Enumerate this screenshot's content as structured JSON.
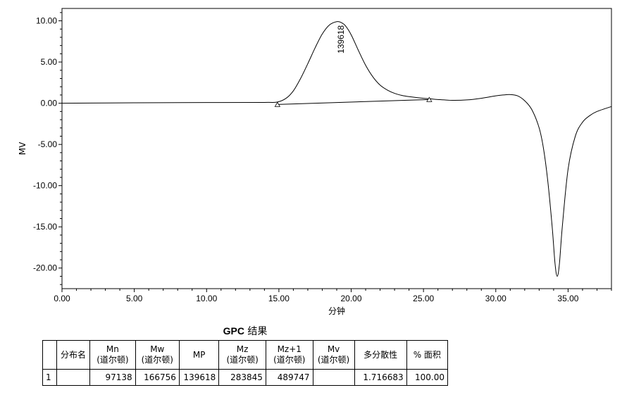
{
  "chart_data": {
    "type": "line",
    "xlabel": "分钟",
    "ylabel": "MV",
    "xlim": [
      0,
      38
    ],
    "ylim": [
      -22.5,
      11.5
    ],
    "x_ticks": [
      "0.00",
      "5.00",
      "10.00",
      "15.00",
      "20.00",
      "25.00",
      "30.00",
      "35.00"
    ],
    "x_tick_values": [
      0,
      5,
      10,
      15,
      20,
      25,
      30,
      35
    ],
    "y_ticks": [
      "10.00",
      "5.00",
      "0.00",
      "-5.00",
      "-10.00",
      "-15.00",
      "-20.00"
    ],
    "y_tick_values": [
      10,
      5,
      0,
      -5,
      -10,
      -15,
      -20
    ],
    "series": [
      {
        "x": [
          0,
          5,
          10,
          14,
          14.9,
          15.5,
          16,
          16.5,
          17,
          17.5,
          18,
          18.5,
          19,
          19.3,
          19.6,
          20,
          20.5,
          21,
          21.5,
          22,
          22.5,
          23,
          23.5,
          24,
          25,
          25.4,
          26,
          27,
          28,
          29,
          30,
          30.5,
          31,
          31.5,
          32,
          32.5,
          33,
          33.3,
          33.6,
          33.9,
          34.1,
          34.25,
          34.4,
          34.6,
          35,
          35.5,
          36,
          36.5,
          37,
          38
        ],
        "y": [
          0,
          0.05,
          0.08,
          0.1,
          0.15,
          0.6,
          1.5,
          3.0,
          4.8,
          6.7,
          8.4,
          9.5,
          9.9,
          9.8,
          9.4,
          8.3,
          6.4,
          4.6,
          3.2,
          2.2,
          1.6,
          1.2,
          0.95,
          0.8,
          0.6,
          0.55,
          0.45,
          0.35,
          0.4,
          0.6,
          0.9,
          1.0,
          1.05,
          0.9,
          0.3,
          -0.8,
          -3.0,
          -5.5,
          -9.5,
          -15.0,
          -19.5,
          -21.0,
          -19.5,
          -15.0,
          -8.0,
          -4.0,
          -2.3,
          -1.5,
          -1.0,
          -0.4
        ]
      }
    ],
    "baseline": {
      "x": [
        14.9,
        25.4
      ],
      "y": [
        -0.15,
        0.45
      ]
    },
    "peak_marks": [
      {
        "x": 14.9,
        "y": -0.15
      },
      {
        "x": 25.4,
        "y": 0.45
      }
    ],
    "annotations": [
      {
        "text": "139618",
        "x": 19.3,
        "y": 9.8
      }
    ]
  },
  "table": {
    "title_bold": "GPC",
    "title_rest": " 结果",
    "headers": [
      {
        "line1": "",
        "line2": ""
      },
      {
        "line1": "分布名",
        "line2": ""
      },
      {
        "line1": "Mn",
        "line2": "(道尔顿)"
      },
      {
        "line1": "Mw",
        "line2": "(道尔顿)"
      },
      {
        "line1": "MP",
        "line2": ""
      },
      {
        "line1": "Mz",
        "line2": "(道尔顿)"
      },
      {
        "line1": "Mz+1",
        "line2": "(道尔顿)"
      },
      {
        "line1": "Mv",
        "line2": "(道尔顿)"
      },
      {
        "line1": "多分散性",
        "line2": ""
      },
      {
        "line1": "% 面积",
        "line2": ""
      }
    ],
    "rows": [
      [
        "1",
        "",
        "97138",
        "166756",
        "139618",
        "283845",
        "489747",
        "",
        "1.716683",
        "100.00"
      ]
    ]
  }
}
